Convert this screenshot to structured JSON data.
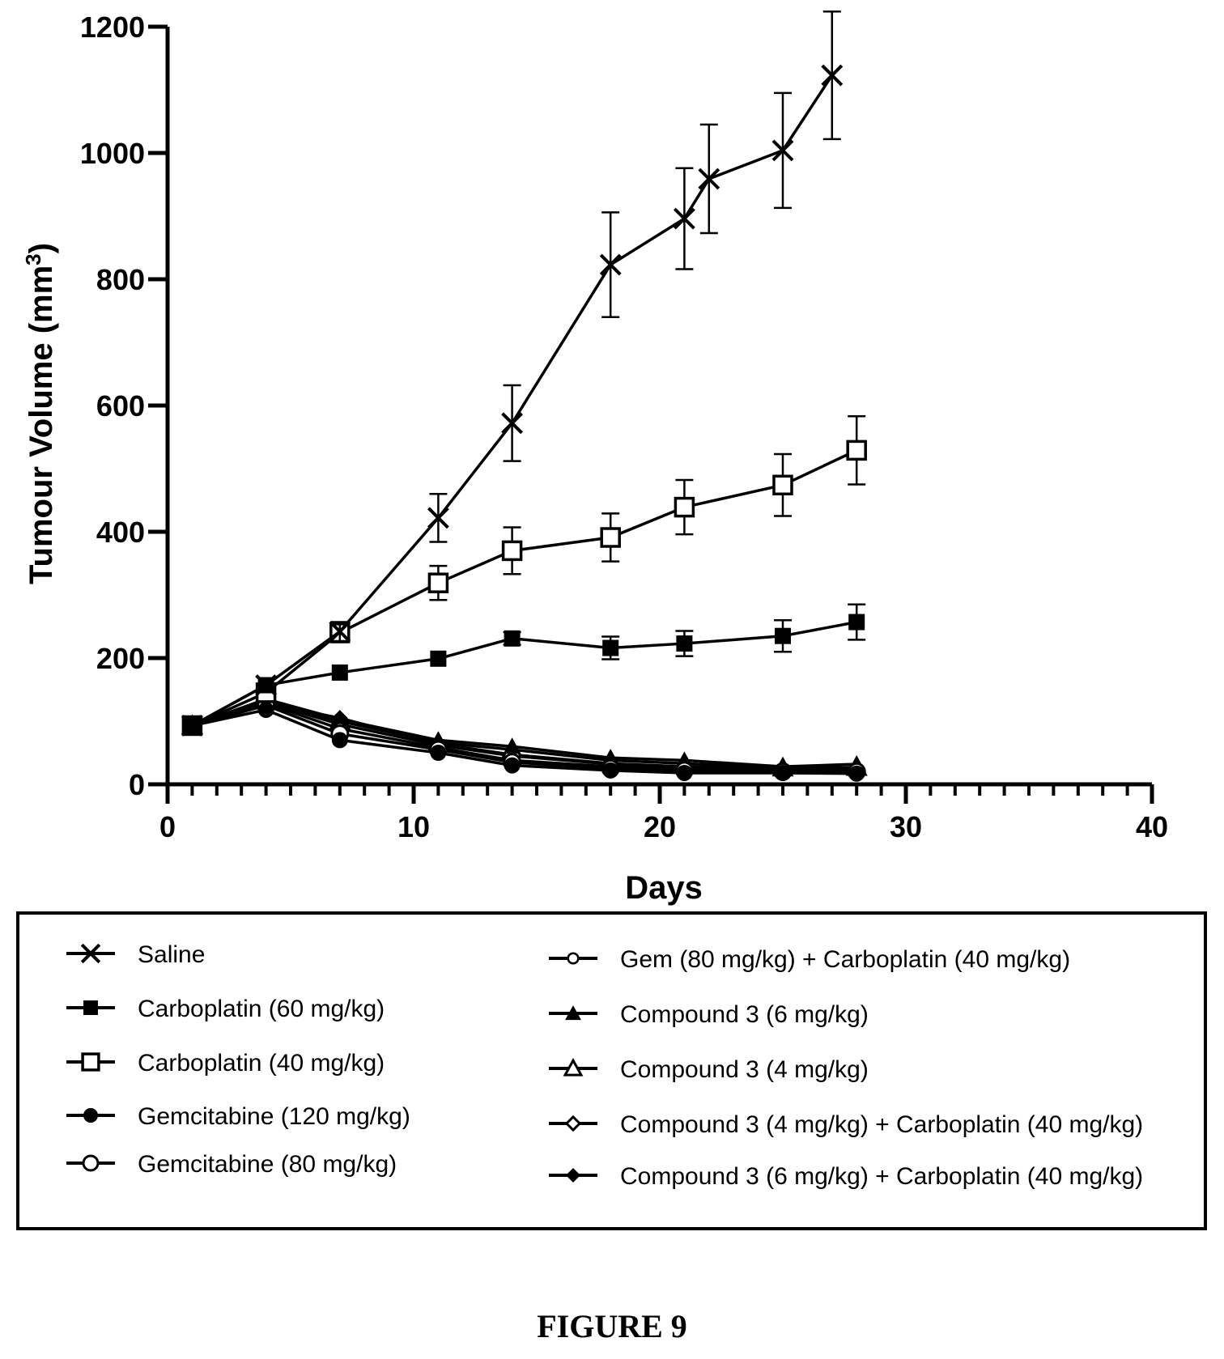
{
  "chart_data": {
    "type": "line",
    "title": "",
    "xlabel": "Days",
    "ylabel": "Tumour Volume (mm",
    "ylabel_superscript": "3",
    "ylabel_close": ")",
    "xlim": [
      0,
      40
    ],
    "ylim": [
      0,
      1200
    ],
    "xticks": [
      0,
      10,
      20,
      30,
      40
    ],
    "yticks": [
      0,
      200,
      400,
      600,
      800,
      1000,
      1200
    ],
    "grid": false,
    "legend_position": "bottom",
    "series": [
      {
        "name": "Saline",
        "marker": "x",
        "x": [
          1,
          4,
          7,
          11,
          14,
          18,
          21,
          22,
          25,
          27
        ],
        "y": [
          93,
          157,
          242,
          422,
          572,
          823,
          896,
          959,
          1004,
          1123
        ],
        "err": [
          0,
          0,
          15,
          38,
          60,
          83,
          80,
          86,
          91,
          101
        ]
      },
      {
        "name": "Carboplatin (60 mg/kg)",
        "marker": "square-filled",
        "x": [
          1,
          4,
          7,
          11,
          14,
          18,
          21,
          25,
          28
        ],
        "y": [
          93,
          157,
          177,
          199,
          231,
          216,
          223,
          235,
          257
        ],
        "err": [
          0,
          0,
          0,
          0,
          10,
          18,
          20,
          25,
          28
        ]
      },
      {
        "name": "Carboplatin (40 mg/kg)",
        "marker": "square-open",
        "x": [
          1,
          4,
          7,
          11,
          14,
          18,
          21,
          25,
          28
        ],
        "y": [
          93,
          145,
          240,
          319,
          370,
          391,
          439,
          474,
          529
        ],
        "err": [
          0,
          0,
          15,
          27,
          37,
          38,
          43,
          49,
          54
        ]
      },
      {
        "name": "Gemcitabine (120 mg/kg)",
        "marker": "circle-filled",
        "x": [
          1,
          4,
          7,
          11,
          14,
          18,
          21,
          25,
          28
        ],
        "y": [
          93,
          118,
          70,
          50,
          30,
          22,
          18,
          18,
          17
        ],
        "err": [
          0,
          0,
          0,
          0,
          0,
          0,
          0,
          0,
          0
        ]
      },
      {
        "name": "Gemcitabine (80 mg/kg)",
        "marker": "circle-open",
        "x": [
          1,
          4,
          7,
          11,
          14,
          18,
          21,
          25,
          28
        ],
        "y": [
          93,
          125,
          80,
          55,
          35,
          25,
          22,
          20,
          20
        ],
        "err": [
          0,
          0,
          0,
          0,
          0,
          0,
          0,
          0,
          0
        ]
      },
      {
        "name": "Gem (80 mg/kg) + Carboplatin (40 mg/kg)",
        "marker": "circle-open-small",
        "x": [
          1,
          4,
          7,
          11,
          14,
          18,
          21,
          25,
          28
        ],
        "y": [
          93,
          128,
          88,
          58,
          38,
          28,
          24,
          22,
          22
        ],
        "err": [
          0,
          0,
          0,
          0,
          0,
          0,
          0,
          0,
          0
        ]
      },
      {
        "name": "Compound 3 (6 mg/kg)",
        "marker": "triangle-filled",
        "x": [
          1,
          4,
          7,
          11,
          14,
          18,
          21,
          25,
          28
        ],
        "y": [
          93,
          135,
          103,
          70,
          60,
          42,
          38,
          28,
          32
        ],
        "err": [
          0,
          0,
          0,
          0,
          0,
          0,
          0,
          0,
          0
        ]
      },
      {
        "name": "Compound 3 (4 mg/kg)",
        "marker": "triangle-open",
        "x": [
          1,
          4,
          7,
          11,
          14,
          18,
          21,
          25,
          28
        ],
        "y": [
          93,
          132,
          100,
          66,
          55,
          38,
          33,
          26,
          27
        ],
        "err": [
          0,
          0,
          0,
          0,
          0,
          0,
          0,
          0,
          0
        ]
      },
      {
        "name": "Compound 3 (4 mg/kg) + Carboplatin (40 mg/kg)",
        "marker": "diamond-open",
        "x": [
          1,
          4,
          7,
          11,
          14,
          18,
          21,
          25,
          28
        ],
        "y": [
          93,
          130,
          95,
          62,
          45,
          32,
          28,
          25,
          24
        ],
        "err": [
          0,
          0,
          0,
          0,
          0,
          0,
          0,
          0,
          0
        ]
      },
      {
        "name": "Compound 3 (6 mg/kg) + Carboplatin (40 mg/kg)",
        "marker": "diamond-filled",
        "x": [
          1,
          4,
          7,
          11,
          14,
          18,
          21,
          25,
          28
        ],
        "y": [
          93,
          128,
          105,
          64,
          47,
          33,
          28,
          24,
          23
        ],
        "err": [
          0,
          0,
          0,
          0,
          0,
          0,
          0,
          0,
          0
        ]
      }
    ]
  },
  "caption": "FIGURE 9"
}
